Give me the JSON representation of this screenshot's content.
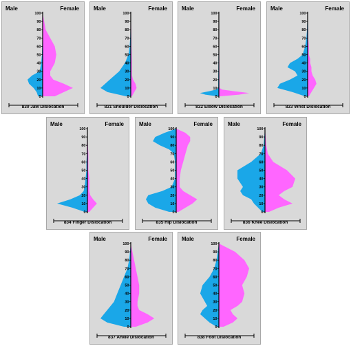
{
  "colors": {
    "male": "#1aa7e8",
    "female": "#ff66ff",
    "panel_bg": "#d9d9d9",
    "axis": "#000000"
  },
  "chart_data": [
    {
      "type": "area",
      "title": "830 Jaw Dislocation",
      "left_label": "Male",
      "right_label": "Female",
      "yticks": [
        "0",
        "10",
        "20",
        "30",
        "40",
        "50",
        "60",
        "70",
        "80",
        "90",
        "100"
      ],
      "ylim": [
        0,
        100
      ],
      "series": [
        {
          "name": "Male",
          "side": "left",
          "y": [
            0,
            5,
            10,
            15,
            20,
            25,
            30,
            40,
            50,
            60,
            70,
            80,
            90,
            100
          ],
          "values": [
            3,
            4,
            6,
            9,
            10,
            7,
            2,
            1,
            0.5,
            0.3,
            0.2,
            0.2,
            0.2,
            0
          ]
        },
        {
          "name": "Female",
          "side": "right",
          "y": [
            0,
            5,
            10,
            15,
            20,
            25,
            30,
            40,
            50,
            60,
            70,
            80,
            90,
            100
          ],
          "values": [
            8,
            14,
            20,
            14,
            7,
            5,
            5,
            8,
            9,
            8,
            5,
            2,
            1,
            0
          ]
        }
      ]
    },
    {
      "type": "area",
      "title": "831 Shoulder Dislocation",
      "left_label": "Male",
      "right_label": "Female",
      "yticks": [
        "0",
        "10",
        "20",
        "30",
        "40",
        "50",
        "60",
        "70",
        "80",
        "90",
        "100"
      ],
      "ylim": [
        0,
        100
      ],
      "series": [
        {
          "name": "Male",
          "side": "left",
          "y": [
            0,
            5,
            10,
            15,
            20,
            25,
            30,
            40,
            50,
            60,
            70,
            80,
            90,
            100
          ],
          "values": [
            4,
            20,
            26,
            22,
            18,
            14,
            10,
            5,
            2,
            1,
            0.5,
            0.3,
            0.2,
            0
          ]
        },
        {
          "name": "Female",
          "side": "right",
          "y": [
            0,
            5,
            10,
            15,
            20,
            25,
            30,
            40,
            50,
            60,
            70,
            80,
            90,
            100
          ],
          "values": [
            1,
            3,
            5,
            4,
            2,
            1,
            1,
            1,
            0.8,
            0.6,
            0.5,
            0.4,
            0.3,
            0
          ]
        }
      ]
    },
    {
      "type": "area",
      "title": "832 Elbow Dislocation",
      "left_label": "Male",
      "right_label": "Female",
      "yticks": [
        "0",
        "10",
        "20",
        "30",
        "40",
        "50",
        "60",
        "70",
        "80",
        "90",
        "100"
      ],
      "ylim": [
        0,
        100
      ],
      "series": [
        {
          "name": "Male",
          "side": "left",
          "y": [
            0,
            2,
            4,
            6,
            8,
            10,
            100
          ],
          "values": [
            2,
            20,
            28,
            15,
            4,
            1,
            0
          ]
        },
        {
          "name": "Female",
          "side": "right",
          "y": [
            0,
            2,
            4,
            6,
            8,
            10,
            100
          ],
          "values": [
            2,
            30,
            45,
            24,
            5,
            1,
            0
          ]
        }
      ]
    },
    {
      "type": "area",
      "title": "833 Wrist Dislocation",
      "left_label": "Male",
      "right_label": "Female",
      "yticks": [
        "0",
        "10",
        "20",
        "30",
        "40",
        "50",
        "60",
        "70",
        "80",
        "90",
        "100"
      ],
      "ylim": [
        0,
        100
      ],
      "series": [
        {
          "name": "Male",
          "side": "left",
          "y": [
            0,
            5,
            10,
            15,
            20,
            25,
            30,
            35,
            40,
            45,
            50,
            60,
            70,
            80,
            90,
            100
          ],
          "values": [
            2,
            12,
            24,
            22,
            14,
            8,
            10,
            16,
            14,
            8,
            4,
            2,
            1,
            0.5,
            0.3,
            0
          ]
        },
        {
          "name": "Female",
          "side": "right",
          "y": [
            0,
            5,
            10,
            15,
            20,
            25,
            30,
            35,
            40,
            45,
            50,
            60,
            70,
            80,
            90,
            100
          ],
          "values": [
            1,
            3,
            5,
            7,
            6,
            4,
            3,
            3,
            2,
            2,
            1,
            1,
            0.5,
            0.4,
            0.2,
            0
          ]
        }
      ]
    },
    {
      "type": "area",
      "title": "834 Finger Dislocation",
      "left_label": "Male",
      "right_label": "Female",
      "yticks": [
        "0",
        "10",
        "20",
        "30",
        "40",
        "50",
        "60",
        "70",
        "80",
        "90",
        "100"
      ],
      "ylim": [
        0,
        100
      ],
      "series": [
        {
          "name": "Male",
          "side": "left",
          "y": [
            0,
            5,
            10,
            15,
            20,
            25,
            30,
            40,
            50,
            60,
            70,
            80,
            90,
            100
          ],
          "values": [
            3,
            16,
            32,
            18,
            8,
            4,
            3,
            2,
            1,
            1,
            0.5,
            0.3,
            0.2,
            0
          ]
        },
        {
          "name": "Female",
          "side": "right",
          "y": [
            0,
            5,
            10,
            15,
            20,
            25,
            30,
            40,
            50,
            60,
            70,
            80,
            90,
            100
          ],
          "values": [
            2,
            6,
            10,
            6,
            3,
            2,
            2,
            2,
            1,
            1,
            1,
            0.5,
            0.3,
            0
          ]
        }
      ]
    },
    {
      "type": "area",
      "title": "835 Hip Dislocation",
      "left_label": "Male",
      "right_label": "Female",
      "yticks": [
        "0",
        "10",
        "20",
        "30",
        "40",
        "50",
        "60",
        "70",
        "80",
        "90",
        "100"
      ],
      "ylim": [
        0,
        100
      ],
      "series": [
        {
          "name": "Male",
          "side": "left",
          "y": [
            0,
            5,
            10,
            15,
            20,
            25,
            30,
            40,
            50,
            60,
            70,
            75,
            80,
            85,
            90,
            95,
            100
          ],
          "values": [
            6,
            18,
            24,
            26,
            24,
            12,
            4,
            1,
            1,
            1,
            2,
            6,
            14,
            20,
            18,
            10,
            0
          ]
        },
        {
          "name": "Female",
          "side": "right",
          "y": [
            0,
            5,
            10,
            15,
            20,
            25,
            30,
            40,
            50,
            60,
            70,
            75,
            80,
            85,
            90,
            95,
            100
          ],
          "values": [
            2,
            8,
            14,
            18,
            12,
            6,
            3,
            3,
            4,
            6,
            8,
            9,
            10,
            12,
            12,
            8,
            0
          ]
        }
      ]
    },
    {
      "type": "area",
      "title": "836 Knee Dislocation",
      "left_label": "Male",
      "right_label": "Female",
      "yticks": [
        "0",
        "10",
        "20",
        "30",
        "40",
        "50",
        "60",
        "70",
        "80",
        "90",
        "100"
      ],
      "ylim": [
        0,
        100
      ],
      "series": [
        {
          "name": "Male",
          "side": "left",
          "y": [
            0,
            5,
            10,
            15,
            20,
            25,
            30,
            40,
            50,
            60,
            70,
            80,
            90,
            100
          ],
          "values": [
            2,
            5,
            8,
            10,
            16,
            18,
            16,
            20,
            20,
            10,
            3,
            1,
            0.5,
            0
          ]
        },
        {
          "name": "Female",
          "side": "right",
          "y": [
            0,
            5,
            10,
            15,
            20,
            25,
            30,
            40,
            50,
            60,
            70,
            80,
            90,
            100
          ],
          "values": [
            3,
            10,
            20,
            14,
            10,
            14,
            20,
            22,
            16,
            6,
            2,
            1,
            0.5,
            0
          ]
        }
      ]
    },
    {
      "type": "area",
      "title": "837 Ankle Dislocation",
      "left_label": "Male",
      "right_label": "Female",
      "yticks": [
        "0",
        "10",
        "20",
        "30",
        "40",
        "50",
        "60",
        "70",
        "80",
        "90",
        "100"
      ],
      "ylim": [
        0,
        100
      ],
      "series": [
        {
          "name": "Male",
          "side": "left",
          "y": [
            0,
            5,
            10,
            15,
            20,
            25,
            30,
            40,
            50,
            60,
            70,
            80,
            90,
            100
          ],
          "values": [
            4,
            14,
            18,
            16,
            14,
            12,
            10,
            8,
            6,
            4,
            2,
            1,
            0.5,
            0
          ]
        },
        {
          "name": "Female",
          "side": "right",
          "y": [
            0,
            5,
            10,
            15,
            20,
            25,
            30,
            40,
            50,
            60,
            70,
            80,
            90,
            100
          ],
          "values": [
            3,
            10,
            14,
            10,
            5,
            4,
            4,
            5,
            5,
            4,
            3,
            2,
            1,
            0
          ]
        }
      ]
    },
    {
      "type": "area",
      "title": "838 Foot Dislocation",
      "left_label": "Male",
      "right_label": "Female",
      "yticks": [
        "0",
        "10",
        "20",
        "30",
        "40",
        "50",
        "60",
        "70",
        "80",
        "90",
        "100"
      ],
      "ylim": [
        0,
        100
      ],
      "series": [
        {
          "name": "Male",
          "side": "left",
          "y": [
            0,
            5,
            10,
            15,
            20,
            25,
            30,
            40,
            50,
            60,
            70,
            80,
            90,
            100
          ],
          "values": [
            2,
            8,
            12,
            16,
            14,
            10,
            12,
            16,
            14,
            8,
            4,
            2,
            1,
            0
          ]
        },
        {
          "name": "Female",
          "side": "right",
          "y": [
            0,
            5,
            10,
            15,
            20,
            25,
            30,
            40,
            50,
            60,
            70,
            80,
            90,
            100
          ],
          "values": [
            4,
            12,
            16,
            12,
            10,
            16,
            20,
            22,
            20,
            24,
            26,
            22,
            14,
            0
          ]
        }
      ]
    }
  ]
}
